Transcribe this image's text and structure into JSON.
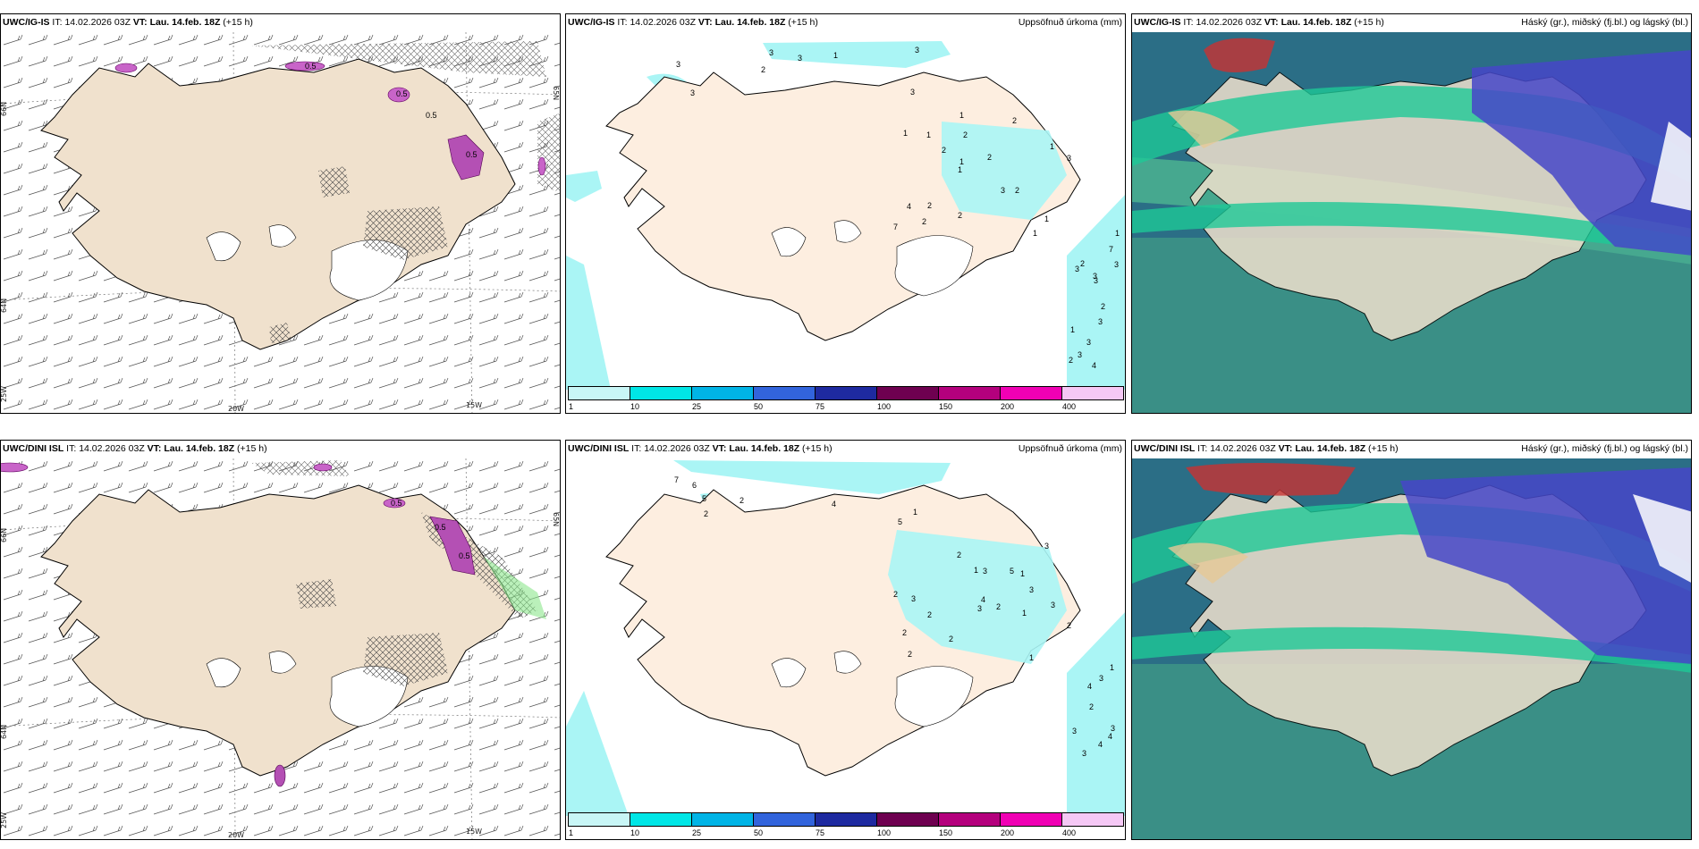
{
  "rows": [
    {
      "model": "UWC/IG-IS",
      "it_label": "IT:",
      "it_value": "14.02.2026 03Z",
      "vt_label": "VT:",
      "vt_value": "Lau. 14.feb. 18Z",
      "lead": "(+15 h)"
    },
    {
      "model": "UWC/DINI ISL",
      "it_label": "IT:",
      "it_value": "14.02.2026 03Z",
      "vt_label": "VT:",
      "vt_value": "Lau. 14.feb. 18Z",
      "lead": "(+15 h)"
    }
  ],
  "panel_titles": {
    "precip": "Uppsöfnuð úrkoma (mm)",
    "cloud": "Háský (gr.), miðský (fj.bl.) og lágský (bl.)"
  },
  "wind_map_labels": {
    "lat_66": "66N",
    "lat_65": "65N",
    "lat_64": "64N",
    "lon_25": "25W",
    "lon_20": "20W",
    "lon_15": "15W",
    "precip_values_top": [
      "0.5",
      "0.5",
      "0.5",
      "0.5"
    ],
    "precip_values_bottom": [
      "0.5",
      "0.5",
      "0.5"
    ]
  },
  "precip_colorbar": {
    "ticks": [
      "1",
      "10",
      "25",
      "50",
      "75",
      "100",
      "150",
      "200",
      "400"
    ],
    "colors": [
      "#c8f6f6",
      "#00e6e6",
      "#00b4e6",
      "#3264dc",
      "#1e2aa0",
      "#6e0050",
      "#b4007d",
      "#f000b4",
      "#f5c8f5"
    ]
  },
  "precip_numbers_top": [
    "3",
    "3",
    "3",
    "2",
    "1",
    "3",
    "3",
    "3",
    "4",
    "2",
    "7",
    "2",
    "2",
    "2",
    "2",
    "1",
    "1",
    "3",
    "3",
    "1",
    "1",
    "2",
    "1",
    "1",
    "2",
    "2",
    "1",
    "1",
    "2",
    "4",
    "2",
    "3",
    "3",
    "3",
    "3",
    "3",
    "2",
    "3",
    "3",
    "1",
    "7",
    "1"
  ],
  "precip_numbers_bottom": [
    "5",
    "5",
    "4",
    "7",
    "1",
    "6",
    "2",
    "2",
    "1",
    "1",
    "5",
    "1",
    "2",
    "2",
    "2",
    "2",
    "1",
    "4",
    "2",
    "2",
    "3",
    "3",
    "3",
    "2",
    "3",
    "3",
    "2",
    "3",
    "2",
    "1",
    "4",
    "3",
    "3",
    "3",
    "4",
    "4",
    "3"
  ],
  "cloud_colors": {
    "high": "#1ec896",
    "mid": "#4646c8",
    "low": "#1e78a0",
    "red": "#c83232"
  }
}
